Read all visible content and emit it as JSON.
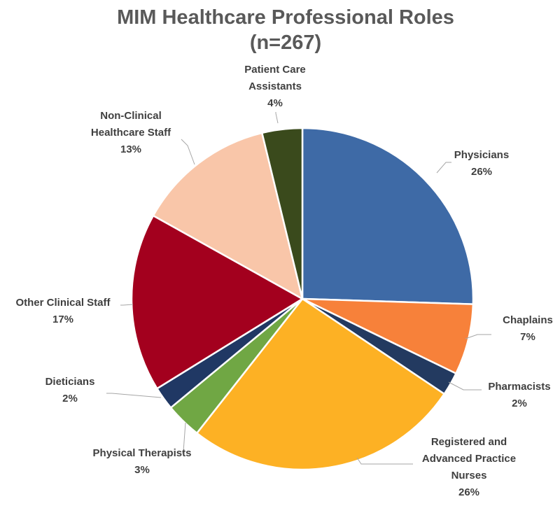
{
  "chart_data": {
    "type": "pie",
    "title": "MIM Healthcare Professional Roles",
    "subtitle": "(n=267)",
    "start_angle_deg": 0,
    "direction": "clockwise",
    "slices": [
      {
        "label": [
          "Physicians"
        ],
        "pct_label": "26%",
        "value": 25.5,
        "color": "#3E6AA6"
      },
      {
        "label": [
          "Chaplains"
        ],
        "pct_label": "7%",
        "value": 6.7,
        "color": "#F7813A"
      },
      {
        "label": [
          "Pharmacists"
        ],
        "pct_label": "2%",
        "value": 2.2,
        "color": "#233A60"
      },
      {
        "label": [
          "Registered and",
          "Advanced Practice",
          "Nurses"
        ],
        "pct_label": "26%",
        "value": 26.2,
        "color": "#FDB124"
      },
      {
        "label": [
          "Physical Therapists"
        ],
        "pct_label": "3%",
        "value": 3.4,
        "color": "#70A744"
      },
      {
        "label": [
          "Dieticians"
        ],
        "pct_label": "2%",
        "value": 2.2,
        "color": "#203864"
      },
      {
        "label": [
          "Other Clinical Staff"
        ],
        "pct_label": "17%",
        "value": 16.9,
        "color": "#A3001E"
      },
      {
        "label": [
          "Non-Clinical",
          "Healthcare Staff"
        ],
        "pct_label": "13%",
        "value": 13.1,
        "color": "#F9C6A9"
      },
      {
        "label": [
          "Patient Care",
          "Assistants"
        ],
        "pct_label": "4%",
        "value": 3.8,
        "color": "#3A4A1C"
      }
    ]
  }
}
